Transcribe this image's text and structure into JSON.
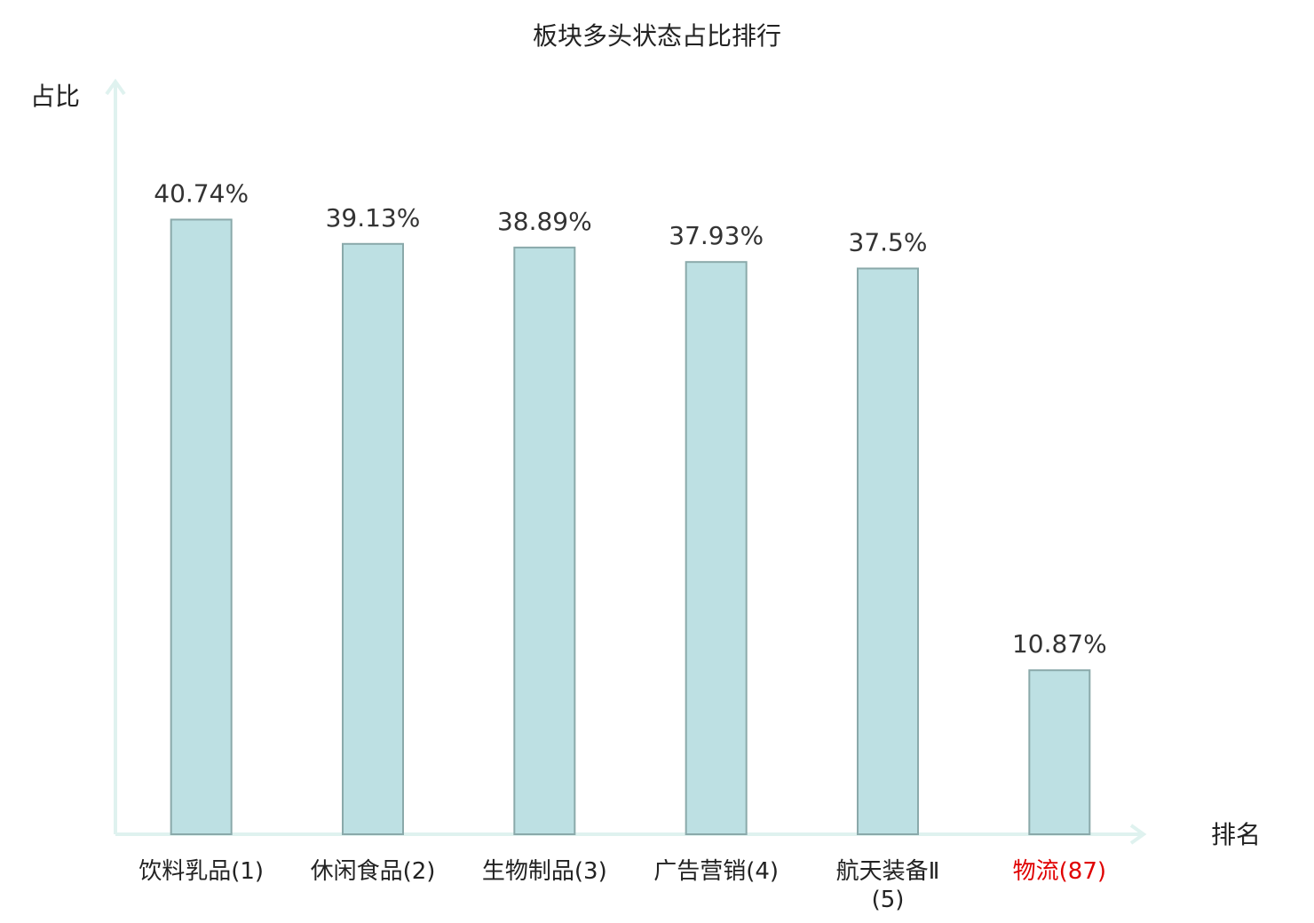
{
  "chart_data": {
    "type": "bar",
    "title": "板块多头状态占比排行",
    "y_label": "占比",
    "x_label": "排名",
    "categories": [
      "饮料乳品(1)",
      "休闲食品(2)",
      "生物制品(3)",
      "广告营销(4)",
      "航天装备Ⅱ(5)",
      "物流(87)"
    ],
    "category_colors": [
      "#222222",
      "#222222",
      "#222222",
      "#222222",
      "#222222",
      "#e00000"
    ],
    "values": [
      40.74,
      39.13,
      38.89,
      37.93,
      37.5,
      10.87
    ],
    "value_labels": [
      "40.74%",
      "39.13%",
      "38.89%",
      "37.93%",
      "37.5%",
      "10.87%"
    ],
    "color": "#bde0e3",
    "ylim": [
      0,
      50
    ]
  }
}
